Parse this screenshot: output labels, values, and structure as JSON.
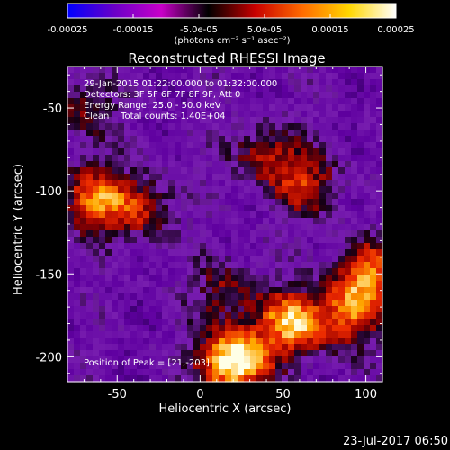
{
  "chart_data": {
    "type": "heatmap",
    "title": "Reconstructed RHESSI Image",
    "xlabel": "Heliocentric X (arcsec)",
    "ylabel": "Heliocentric Y (arcsec)",
    "xlim": [
      -80,
      110
    ],
    "ylim": [
      -215,
      -25
    ],
    "x_ticks": [
      -50,
      0,
      50,
      100
    ],
    "y_ticks": [
      -50,
      -100,
      -150,
      -200
    ],
    "colorbar": {
      "min": -0.00025,
      "max": 0.00025,
      "tick_labels": [
        "-0.00025",
        "-0.00015",
        "-5.0e-05",
        "5.0e-05",
        "0.00015",
        "0.00025"
      ],
      "tick_values": [
        -0.00025,
        -0.00015,
        -5e-05,
        5e-05,
        0.00015,
        0.00025
      ],
      "units_label": "(photons cm⁻² s⁻¹ asec⁻²)",
      "colors": [
        "#0000ff",
        "#6a00c8",
        "#c800c8",
        "#000000",
        "#c80000",
        "#ff6a00",
        "#ffd700",
        "#ffffff"
      ]
    },
    "info": {
      "time_range": "29-Jan-2015 01:22:00.000 to 01:32:00.000",
      "detectors": "Detectors: 3F 5F 6F 7F 8F 9F, Att 0",
      "energy_range": "Energy Range: 25.0 - 50.0 keV",
      "method": "Clean",
      "total_counts": "Total counts: 1.40E+04",
      "peak": "Position of Peak = [21,-203]"
    },
    "sources": [
      {
        "x": 20,
        "y": -203,
        "intensity": 1.0
      },
      {
        "x": 55,
        "y": -180,
        "intensity": 0.72
      },
      {
        "x": 88,
        "y": -175,
        "intensity": 0.55
      },
      {
        "x": 102,
        "y": -150,
        "intensity": 0.62
      },
      {
        "x": -65,
        "y": -105,
        "intensity": 0.6
      },
      {
        "x": -35,
        "y": -110,
        "intensity": 0.45
      },
      {
        "x": 38,
        "y": -78,
        "intensity": 0.4
      },
      {
        "x": 65,
        "y": -95,
        "intensity": 0.45
      },
      {
        "x": -70,
        "y": -50,
        "intensity": 0.35
      },
      {
        "x": 15,
        "y": -160,
        "intensity": 0.35
      }
    ]
  },
  "footer": {
    "date": "23-Jul-2017 06:50"
  }
}
